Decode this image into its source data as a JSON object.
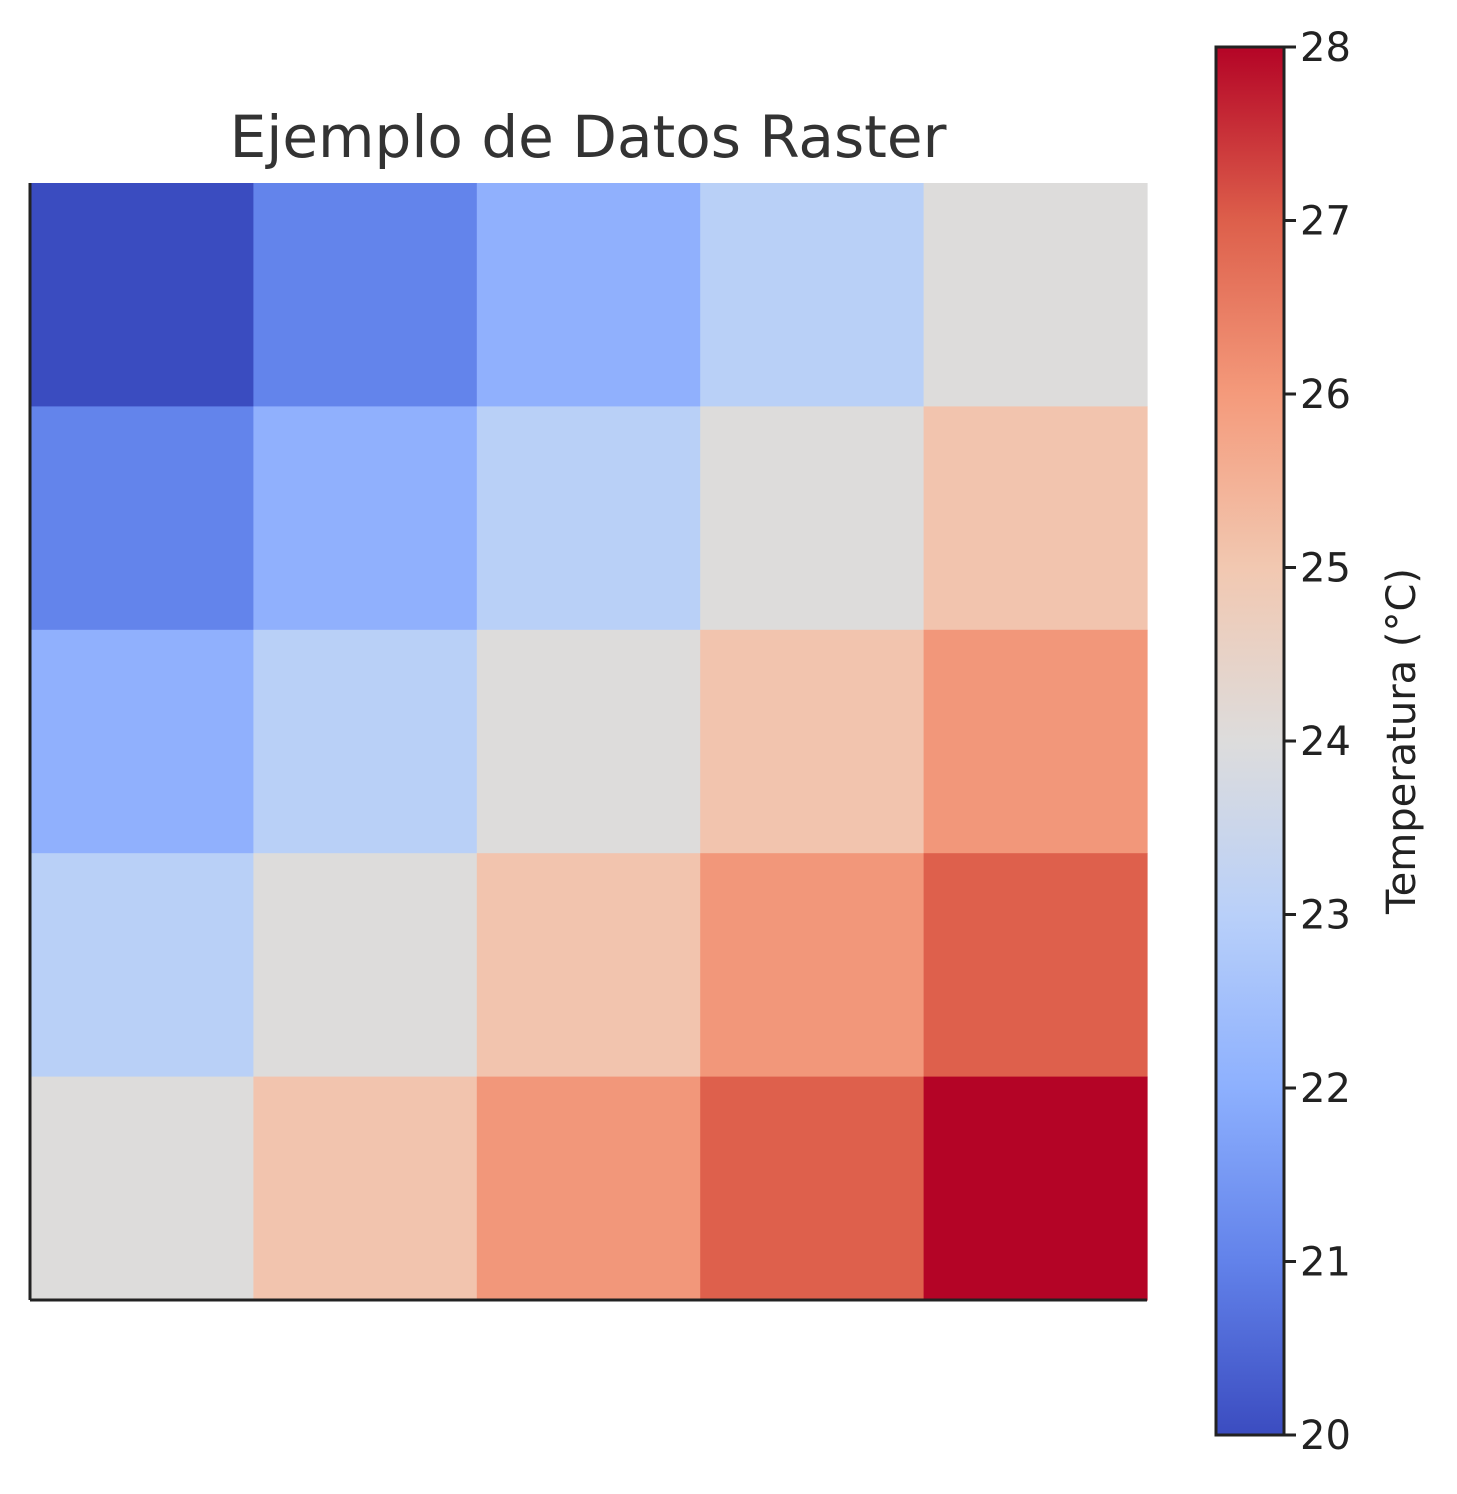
{
  "chart_data": {
    "type": "heatmap",
    "title": "Ejemplo de Datos Raster",
    "colormap": "coolwarm",
    "grid": false,
    "rows": 5,
    "cols": 5,
    "values": [
      [
        20,
        21,
        22,
        23,
        24
      ],
      [
        21,
        22,
        23,
        24,
        25
      ],
      [
        22,
        23,
        24,
        25,
        26
      ],
      [
        23,
        24,
        25,
        26,
        27
      ],
      [
        24,
        25,
        26,
        27,
        28
      ]
    ],
    "colorbar": {
      "label": "Temperatura (°C)",
      "min": 20,
      "max": 28,
      "ticks": [
        "20",
        "21",
        "22",
        "23",
        "24",
        "25",
        "26",
        "27",
        "28"
      ],
      "stops": [
        "#3b4cc0",
        "#6282ea",
        "#8db0fe",
        "#b9d0f9",
        "#dddcdc",
        "#f2c8b1",
        "#f49a7b",
        "#dd5f4b",
        "#b40426"
      ]
    },
    "colors": {
      "20": "#3a4cc0",
      "21": "#6384eb",
      "22": "#90b0fd",
      "23": "#b9d0f7",
      "24": "#dddcdb",
      "25": "#f2c4ae",
      "26": "#f2977a",
      "27": "#de604c",
      "28": "#b40426"
    }
  }
}
